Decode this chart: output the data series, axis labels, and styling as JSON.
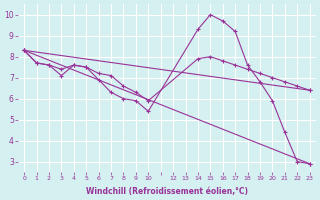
{
  "xlabel": "Windchill (Refroidissement éolien,°C)",
  "background_color": "#d4f0f0",
  "line_color": "#993399",
  "grid_color": "#ffffff",
  "ylim": [
    2.5,
    10.5
  ],
  "yticks": [
    3,
    4,
    5,
    6,
    7,
    8,
    9,
    10
  ],
  "xtick_labels": [
    "0",
    "1",
    "2",
    "3",
    "4",
    "5",
    "6",
    "7",
    "8",
    "9",
    "10",
    "",
    "12",
    "13",
    "14",
    "15",
    "16",
    "17",
    "18",
    "19",
    "20",
    "21",
    "22",
    "23"
  ],
  "series": [
    {
      "xi": [
        0,
        1,
        2,
        3,
        4,
        5,
        6,
        7,
        8,
        9,
        10,
        14,
        15,
        16,
        17,
        18,
        19,
        20,
        21,
        22,
        23
      ],
      "y": [
        8.3,
        7.7,
        7.6,
        7.1,
        7.6,
        7.5,
        6.9,
        6.3,
        6.0,
        5.9,
        5.4,
        9.3,
        10.0,
        9.7,
        9.2,
        7.6,
        6.8,
        5.9,
        4.4,
        3.0,
        2.9
      ]
    },
    {
      "xi": [
        0,
        1,
        2,
        3,
        4,
        5,
        6,
        7,
        8,
        9,
        10,
        14,
        15,
        16,
        17,
        18,
        19,
        20,
        21,
        22,
        23
      ],
      "y": [
        8.3,
        7.7,
        7.6,
        7.4,
        7.6,
        7.5,
        7.2,
        7.1,
        6.6,
        6.3,
        5.9,
        7.9,
        8.0,
        7.8,
        7.6,
        7.4,
        7.2,
        7.0,
        6.8,
        6.6,
        6.4
      ]
    },
    {
      "xi": [
        0,
        23
      ],
      "y": [
        8.3,
        6.4
      ]
    },
    {
      "xi": [
        0,
        23
      ],
      "y": [
        8.3,
        2.9
      ]
    }
  ]
}
